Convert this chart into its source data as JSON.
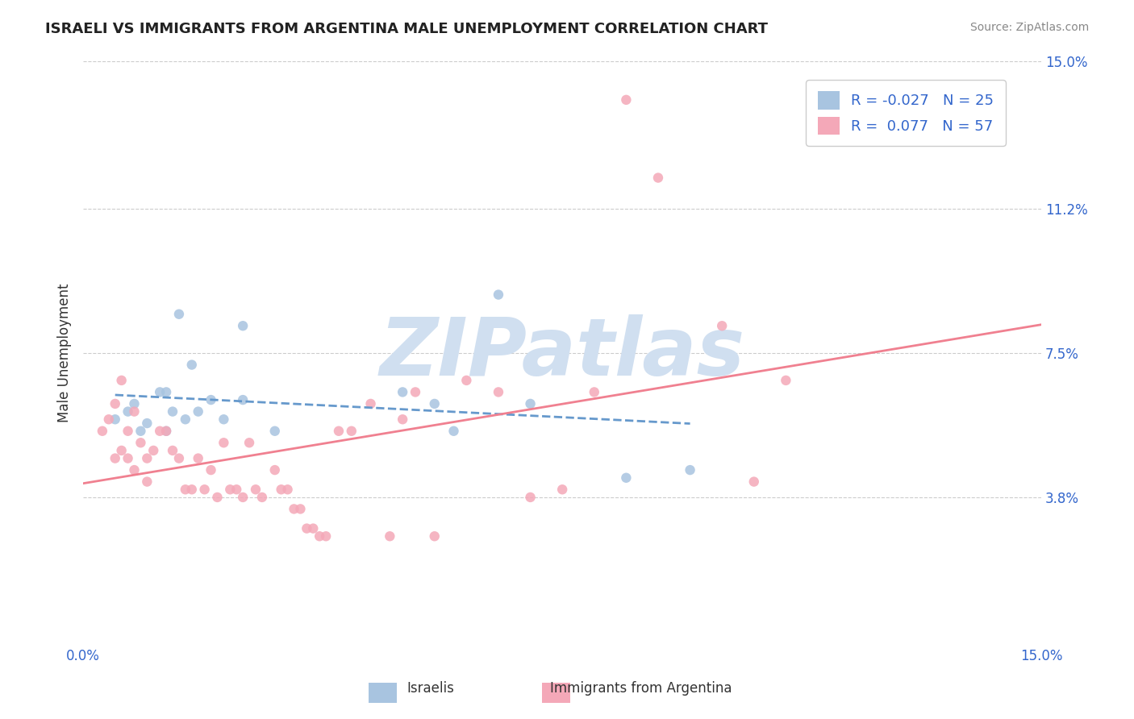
{
  "title": "ISRAELI VS IMMIGRANTS FROM ARGENTINA MALE UNEMPLOYMENT CORRELATION CHART",
  "source": "Source: ZipAtlas.com",
  "xlabel": "",
  "ylabel": "Male Unemployment",
  "xlim": [
    0.0,
    0.15
  ],
  "ylim": [
    0.0,
    0.15
  ],
  "yticks": [
    0.038,
    0.075,
    0.112,
    0.15
  ],
  "ytick_labels": [
    "3.8%",
    "7.5%",
    "11.2%",
    "15.0%"
  ],
  "xticks": [
    0.0,
    0.15
  ],
  "xtick_labels": [
    "0.0%",
    "15.0%"
  ],
  "background_color": "#ffffff",
  "grid_color": "#cccccc",
  "watermark_text": "ZIPatlas",
  "watermark_color": "#d0dff0",
  "israelis_color": "#a8c4e0",
  "argentina_color": "#f4a8b8",
  "trend_israeli_color": "#6699cc",
  "trend_argentina_color": "#f08090",
  "R_israeli": -0.027,
  "N_israeli": 25,
  "R_argentina": 0.077,
  "N_argentina": 57,
  "legend_label_1": "Israelis",
  "legend_label_2": "Immigrants from Argentina",
  "israelis_x": [
    0.005,
    0.007,
    0.008,
    0.009,
    0.01,
    0.012,
    0.013,
    0.013,
    0.014,
    0.015,
    0.016,
    0.017,
    0.018,
    0.02,
    0.022,
    0.025,
    0.025,
    0.03,
    0.05,
    0.055,
    0.058,
    0.065,
    0.07,
    0.085,
    0.095
  ],
  "israelis_y": [
    0.058,
    0.06,
    0.062,
    0.055,
    0.057,
    0.065,
    0.065,
    0.055,
    0.06,
    0.085,
    0.058,
    0.072,
    0.06,
    0.063,
    0.058,
    0.082,
    0.063,
    0.055,
    0.065,
    0.062,
    0.055,
    0.09,
    0.062,
    0.043,
    0.045
  ],
  "argentina_x": [
    0.003,
    0.004,
    0.005,
    0.005,
    0.006,
    0.006,
    0.007,
    0.007,
    0.008,
    0.008,
    0.009,
    0.01,
    0.01,
    0.011,
    0.012,
    0.013,
    0.014,
    0.015,
    0.016,
    0.017,
    0.018,
    0.019,
    0.02,
    0.021,
    0.022,
    0.023,
    0.024,
    0.025,
    0.026,
    0.027,
    0.028,
    0.03,
    0.031,
    0.032,
    0.033,
    0.034,
    0.035,
    0.036,
    0.037,
    0.038,
    0.04,
    0.042,
    0.045,
    0.048,
    0.05,
    0.052,
    0.055,
    0.06,
    0.065,
    0.07,
    0.075,
    0.08,
    0.085,
    0.09,
    0.1,
    0.105,
    0.11
  ],
  "argentina_y": [
    0.055,
    0.058,
    0.062,
    0.048,
    0.068,
    0.05,
    0.055,
    0.048,
    0.06,
    0.045,
    0.052,
    0.048,
    0.042,
    0.05,
    0.055,
    0.055,
    0.05,
    0.048,
    0.04,
    0.04,
    0.048,
    0.04,
    0.045,
    0.038,
    0.052,
    0.04,
    0.04,
    0.038,
    0.052,
    0.04,
    0.038,
    0.045,
    0.04,
    0.04,
    0.035,
    0.035,
    0.03,
    0.03,
    0.028,
    0.028,
    0.055,
    0.055,
    0.062,
    0.028,
    0.058,
    0.065,
    0.028,
    0.068,
    0.065,
    0.038,
    0.04,
    0.065,
    0.14,
    0.12,
    0.082,
    0.042,
    0.068
  ]
}
